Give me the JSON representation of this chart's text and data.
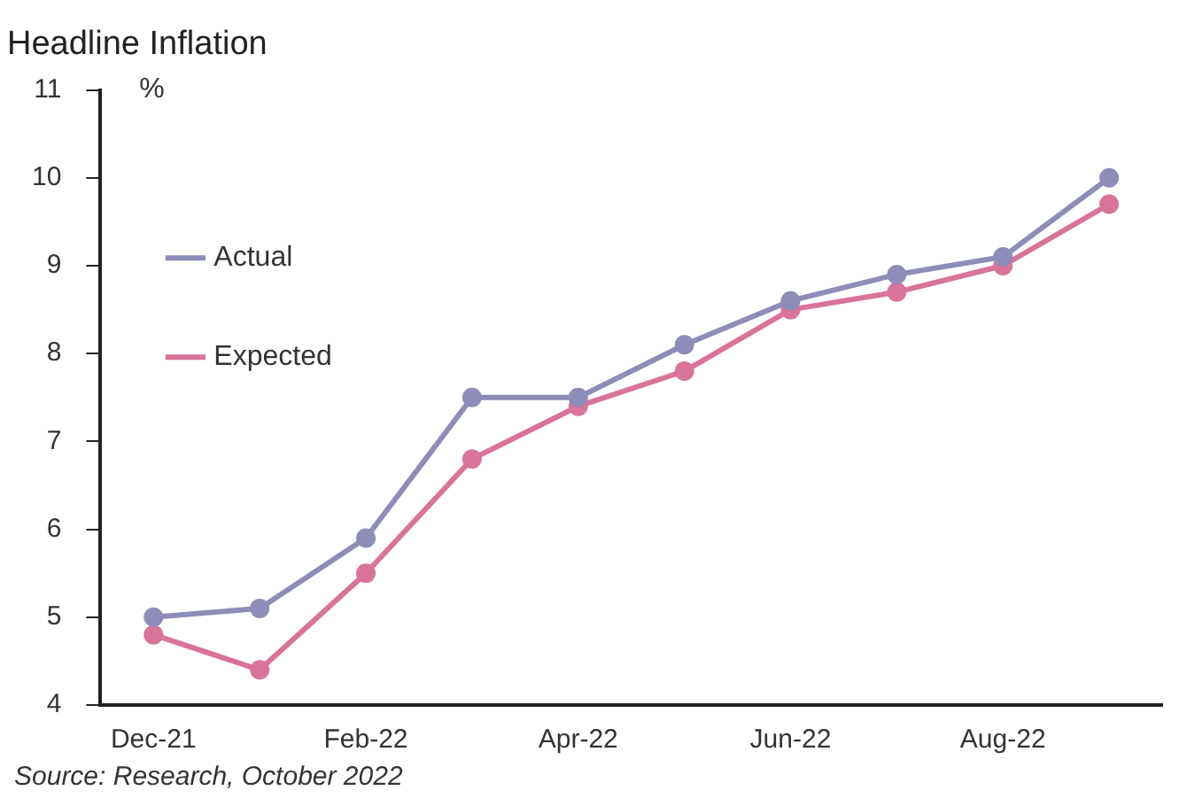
{
  "chart_data": {
    "type": "line",
    "title": "Headline Inflation",
    "ylabel": "%",
    "categories": [
      "Dec-21",
      null,
      "Feb-22",
      null,
      "Apr-22",
      null,
      "Jun-22",
      null,
      "Aug-22",
      null
    ],
    "series": [
      {
        "name": "Actual",
        "color": "#8e8cb8",
        "values": [
          5.0,
          5.1,
          5.9,
          7.5,
          7.5,
          8.1,
          8.6,
          8.9,
          9.1,
          10.0
        ]
      },
      {
        "name": "Expected",
        "color": "#d9739a",
        "values": [
          4.8,
          4.4,
          5.5,
          6.8,
          7.4,
          7.8,
          8.5,
          8.7,
          9.0,
          9.7
        ]
      }
    ],
    "ylim": [
      4,
      11
    ],
    "yticks": [
      4,
      5,
      6,
      7,
      8,
      9,
      10,
      11
    ],
    "grid": false,
    "legend": "top left",
    "marker": "circle",
    "line_style": "solid",
    "annotations": [
      "Source: Research, October 2022"
    ]
  }
}
